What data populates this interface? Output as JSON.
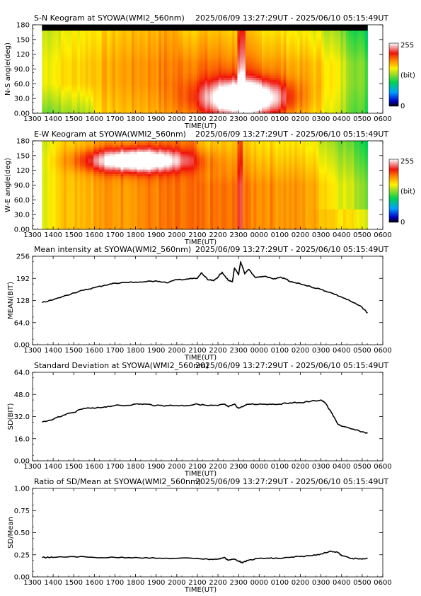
{
  "time_ticks": [
    "1300",
    "1400",
    "1500",
    "1600",
    "1700",
    "1800",
    "1900",
    "2000",
    "2100",
    "2200",
    "2300",
    "0000",
    "0100",
    "0200",
    "0300",
    "0400",
    "0500",
    "0600"
  ],
  "time_axis_label": "TIME(UT)",
  "date_range": "2025/06/09 13:27:29UT - 2025/06/10 05:15:49UT",
  "colorbar": {
    "max_label": "255",
    "min_label": "0",
    "unit_label": "(bit)"
  },
  "colors": {
    "line": "#000000",
    "data_gap": "#000000"
  },
  "chart_data": [
    {
      "type": "heatmap",
      "title": "S-N Keogram at SYOWA(WMI2_560nm)",
      "ylabel": "N-S angle(deg)",
      "yticks": [
        "0.00",
        "30.0",
        "60.0",
        "90.0",
        "120",
        "150",
        "180"
      ],
      "ylim": [
        0,
        180
      ],
      "xlim": [
        13.0,
        30.0
      ],
      "data_start": 13.458,
      "data_end": 29.264,
      "gap_y_from": 168,
      "bright_region": {
        "x_center": 23.3,
        "y_center": 30,
        "intensity": "255"
      },
      "colorscale": "rainbow 0-255 bit"
    },
    {
      "type": "heatmap",
      "title": "E-W Keogram at SYOWA(WMI2_560nm)",
      "ylabel": "W-E angle(deg)",
      "yticks": [
        "0.00",
        "30.0",
        "60.0",
        "90.0",
        "120",
        "150",
        "180"
      ],
      "ylim": [
        0,
        180
      ],
      "xlim": [
        13.0,
        30.0
      ],
      "data_start": 13.458,
      "data_end": 29.264,
      "bright_region": {
        "x_center": 18.0,
        "y_center": 140,
        "intensity": "255"
      },
      "colorscale": "rainbow 0-255 bit"
    },
    {
      "type": "line",
      "title": "Mean intensity at SYOWA(WMI2_560nm)",
      "ylabel": "MEAN(BIT)",
      "yticks": [
        "0.00",
        "64.0",
        "128",
        "192",
        "256"
      ],
      "ylim": [
        0,
        256
      ],
      "xlim": [
        13.0,
        30.0
      ],
      "series": [
        {
          "x": [
            13.46,
            14.0,
            14.5,
            15.0,
            15.5,
            16.0,
            16.5,
            17.0,
            17.5,
            18.0,
            18.5,
            19.0,
            19.5,
            20.0,
            20.5,
            21.0,
            21.2,
            21.5,
            21.8,
            22.0,
            22.2,
            22.5,
            22.7,
            22.8,
            23.0,
            23.1,
            23.3,
            23.5,
            23.8,
            24.0,
            24.3,
            24.7,
            25.0,
            25.3,
            25.5,
            26.0,
            26.5,
            27.0,
            27.5,
            28.0,
            28.5,
            29.0,
            29.26
          ],
          "y": [
            122,
            130,
            140,
            150,
            158,
            165,
            172,
            178,
            180,
            181,
            182,
            185,
            179,
            188,
            190,
            192,
            208,
            188,
            185,
            196,
            210,
            186,
            182,
            222,
            202,
            240,
            205,
            218,
            195,
            196,
            198,
            190,
            195,
            190,
            182,
            176,
            168,
            160,
            150,
            138,
            124,
            108,
            92
          ]
        }
      ]
    },
    {
      "type": "line",
      "title": "Standard Deviation at SYOWA(WMI2_560nm)",
      "ylabel": "SD(BIT)",
      "yticks": [
        "0.00",
        "16.0",
        "32.0",
        "48.0",
        "64.0"
      ],
      "ylim": [
        0,
        64
      ],
      "xlim": [
        13.0,
        30.0
      ],
      "series": [
        {
          "x": [
            13.46,
            14.0,
            14.5,
            15.0,
            15.5,
            16.0,
            16.5,
            17.0,
            17.5,
            18.0,
            18.5,
            19.0,
            19.5,
            20.0,
            20.5,
            21.0,
            21.5,
            22.0,
            22.3,
            22.5,
            22.8,
            23.0,
            23.3,
            23.5,
            24.0,
            24.5,
            25.0,
            25.5,
            26.0,
            26.5,
            27.0,
            27.2,
            27.5,
            27.8,
            28.0,
            28.5,
            29.0,
            29.26
          ],
          "y": [
            28,
            30,
            33,
            35,
            38,
            38,
            39,
            40,
            40,
            41,
            41,
            40,
            40,
            40,
            40,
            41,
            40,
            40,
            41,
            39,
            41,
            38,
            40,
            41,
            41,
            41,
            41,
            42,
            42,
            43,
            44,
            42,
            35,
            27,
            25,
            23,
            21,
            20
          ]
        }
      ]
    },
    {
      "type": "line",
      "title": "Ratio of SD/Mean at SYOWA(WMI2_560nm)",
      "ylabel": "SD/Mean",
      "yticks": [
        "0.00",
        "0.25",
        "0.50",
        "0.75",
        "1.00"
      ],
      "ylim": [
        0,
        1.0
      ],
      "xlim": [
        13.0,
        30.0
      ],
      "series": [
        {
          "x": [
            13.46,
            14.0,
            15.0,
            16.0,
            17.0,
            18.0,
            19.0,
            20.0,
            21.0,
            21.5,
            22.0,
            22.3,
            22.5,
            22.8,
            23.0,
            23.2,
            23.5,
            24.0,
            24.5,
            25.0,
            25.5,
            26.0,
            26.5,
            27.0,
            27.5,
            27.8,
            28.0,
            28.5,
            29.0,
            29.26
          ],
          "y": [
            0.22,
            0.22,
            0.23,
            0.22,
            0.22,
            0.22,
            0.21,
            0.21,
            0.21,
            0.2,
            0.2,
            0.22,
            0.19,
            0.2,
            0.18,
            0.16,
            0.19,
            0.21,
            0.21,
            0.21,
            0.22,
            0.23,
            0.24,
            0.26,
            0.29,
            0.28,
            0.24,
            0.21,
            0.2,
            0.21
          ]
        }
      ]
    }
  ]
}
